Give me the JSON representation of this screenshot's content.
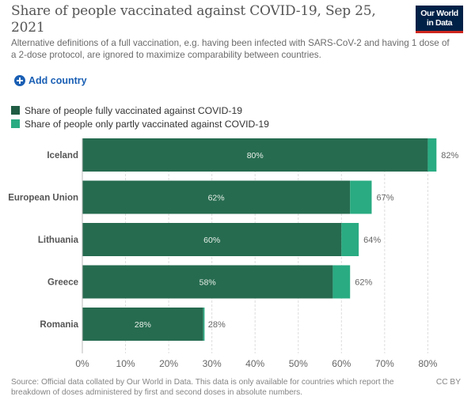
{
  "header": {
    "title": "Share of people vaccinated against COVID-19, Sep 25, 2021",
    "subtitle": "Alternative definitions of a full vaccination, e.g. having been infected with SARS-CoV-2 and having 1 dose of a 2-dose protocol, are ignored to maximize comparability between countries.",
    "logo_line1": "Our World",
    "logo_line2": "in Data"
  },
  "controls": {
    "add_country_label": "Add country",
    "add_icon": "plus-circle-icon"
  },
  "colors": {
    "fully": "#266b50",
    "partly": "#2aab82",
    "brand_navy": "#002147",
    "brand_red": "#ce261e",
    "link_blue": "#1a5fb4"
  },
  "chart_data": {
    "type": "bar",
    "orientation": "horizontal",
    "stacked": true,
    "title": "Share of people vaccinated against COVID-19, Sep 25, 2021",
    "xlabel": "",
    "ylabel": "",
    "categories": [
      "Iceland",
      "European Union",
      "Lithuania",
      "Greece",
      "Romania"
    ],
    "series": [
      {
        "name": "Share of people fully vaccinated against COVID-19",
        "values": [
          80,
          62,
          60,
          58,
          28
        ],
        "labels": [
          "80%",
          "62%",
          "60%",
          "58%",
          "28%"
        ]
      },
      {
        "name": "Share of people only partly vaccinated against COVID-19",
        "values": [
          2,
          5,
          4,
          4,
          0.3
        ]
      }
    ],
    "totals": [
      82,
      67,
      64,
      62,
      28
    ],
    "total_labels": [
      "82%",
      "67%",
      "64%",
      "62%",
      "28%"
    ],
    "xlim": [
      0,
      80
    ],
    "xticks": [
      0,
      10,
      20,
      30,
      40,
      50,
      60,
      70,
      80
    ],
    "xtick_labels": [
      "0%",
      "10%",
      "20%",
      "30%",
      "40%",
      "50%",
      "60%",
      "70%",
      "80%"
    ],
    "grid": true,
    "legend_position": "top-left"
  },
  "footer": {
    "source": "Source: Official data collated by Our World in Data. This data is only available for countries which report the breakdown of doses administered by first and second doses in absolute numbers.",
    "license": "CC BY"
  }
}
